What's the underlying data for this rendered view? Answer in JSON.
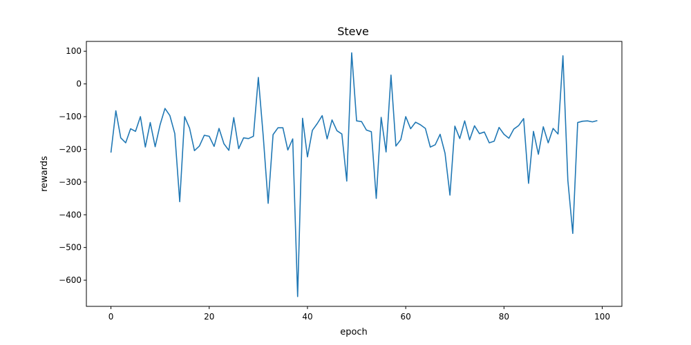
{
  "chart_data": {
    "type": "line",
    "title": "Steve",
    "xlabel": "epoch",
    "ylabel": "rewards",
    "xlim": [
      -5,
      104
    ],
    "ylim": [
      -680,
      130
    ],
    "xticks": [
      0,
      20,
      40,
      60,
      80,
      100
    ],
    "yticks": [
      -600,
      -500,
      -400,
      -300,
      -200,
      -100,
      0,
      100
    ],
    "grid": false,
    "line_color": "#1f77b4",
    "series": [
      {
        "x": [
          0,
          1,
          2,
          3,
          4,
          5,
          6,
          7,
          8,
          9,
          10,
          11,
          12,
          13,
          14,
          15,
          16,
          17,
          18,
          19,
          20,
          21,
          22,
          23,
          24,
          25,
          26,
          27,
          28,
          29,
          30,
          31,
          32,
          33,
          34,
          35,
          36,
          37,
          38,
          39,
          40,
          41,
          42,
          43,
          44,
          45,
          46,
          47,
          48,
          49,
          50,
          51,
          52,
          53,
          54,
          55,
          56,
          57,
          58,
          59,
          60,
          61,
          62,
          63,
          64,
          65,
          66,
          67,
          68,
          69,
          70,
          71,
          72,
          73,
          74,
          75,
          76,
          77,
          78,
          79,
          80,
          81,
          82,
          83,
          84,
          85,
          86,
          87,
          88,
          89,
          90,
          91,
          92,
          93,
          94,
          95,
          96,
          97,
          98,
          99
        ],
        "values": [
          -210,
          -82,
          -165,
          -180,
          -137,
          -145,
          -100,
          -193,
          -118,
          -192,
          -125,
          -75,
          -97,
          -152,
          -360,
          -100,
          -135,
          -204,
          -190,
          -157,
          -160,
          -191,
          -136,
          -183,
          -203,
          -103,
          -198,
          -165,
          -167,
          -160,
          20,
          -160,
          -365,
          -155,
          -134,
          -134,
          -202,
          -168,
          -650,
          -105,
          -223,
          -142,
          -121,
          -97,
          -168,
          -110,
          -143,
          -153,
          -297,
          95,
          -113,
          -115,
          -141,
          -146,
          -350,
          -102,
          -208,
          27,
          -190,
          -170,
          -100,
          -137,
          -117,
          -125,
          -136,
          -193,
          -186,
          -154,
          -212,
          -340,
          -129,
          -167,
          -113,
          -171,
          -128,
          -152,
          -147,
          -180,
          -175,
          -133,
          -154,
          -166,
          -138,
          -127,
          -106,
          -304,
          -145,
          -215,
          -131,
          -180,
          -136,
          -153,
          86,
          -295,
          -457,
          -118,
          -114,
          -113,
          -116,
          -112
        ]
      }
    ]
  }
}
